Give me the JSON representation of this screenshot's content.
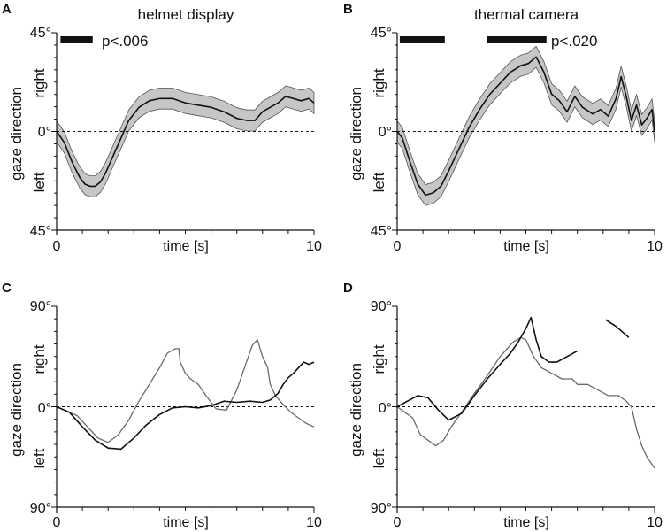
{
  "figure": {
    "panel_letters": [
      "A",
      "B",
      "C",
      "D"
    ],
    "titles": {
      "a": "helmet display",
      "b": "thermal camera"
    }
  },
  "colors": {
    "black": "#111111",
    "gray": "#6a6a6a",
    "band": "#c6c6c6"
  },
  "chart_data": [
    {
      "panel": "A",
      "type": "line",
      "title": "helmet display",
      "xlabel": "time [s]",
      "ylabel": "gaze direction",
      "ydir_labels": {
        "top": "right",
        "bottom": "left"
      },
      "xtick_labels": [
        "0",
        "10"
      ],
      "ytick_labels": {
        "top": "45°",
        "zero": "0°",
        "bottom": "45°"
      },
      "xlim": [
        0,
        10
      ],
      "ylim": [
        -45,
        45
      ],
      "zero_line": "dashed",
      "significance": {
        "label": "p<.006",
        "bars": [
          [
            0.15,
            1.4
          ]
        ]
      },
      "band_halfwidth": 4.8,
      "series": [
        {
          "name": "mean",
          "color": "black",
          "x": [
            0,
            0.3,
            0.6,
            0.9,
            1.1,
            1.3,
            1.5,
            1.7,
            1.9,
            2.2,
            2.5,
            2.8,
            3.2,
            3.6,
            4.0,
            4.5,
            5.0,
            5.5,
            6.0,
            6.5,
            7.0,
            7.4,
            7.7,
            8.0,
            8.3,
            8.6,
            8.9,
            9.2,
            9.5,
            9.8,
            10
          ],
          "y": [
            0,
            -5,
            -14,
            -21,
            -24,
            -25,
            -25,
            -23,
            -19,
            -11,
            -3,
            5,
            11,
            14,
            15,
            15,
            13,
            12,
            11,
            9,
            6,
            5,
            5,
            9,
            11,
            13,
            16,
            15,
            14,
            15,
            13
          ]
        }
      ]
    },
    {
      "panel": "B",
      "type": "line",
      "title": "thermal camera",
      "xlabel": "time [s]",
      "ylabel": "gaze direction",
      "ydir_labels": {
        "top": "right",
        "bottom": "left"
      },
      "xtick_labels": [
        "0",
        "10"
      ],
      "ytick_labels": {
        "top": "45°",
        "zero": "0°",
        "bottom": "45°"
      },
      "xlim": [
        0,
        10
      ],
      "ylim": [
        -45,
        45
      ],
      "zero_line": "dashed",
      "significance": {
        "label": "p<.020",
        "bars": [
          [
            0.1,
            1.85
          ],
          [
            3.5,
            5.8
          ]
        ]
      },
      "band_halfwidth": 4.8,
      "series": [
        {
          "name": "mean",
          "color": "black",
          "x": [
            0,
            0.2,
            0.5,
            0.8,
            1.1,
            1.4,
            1.7,
            2.0,
            2.4,
            2.8,
            3.2,
            3.6,
            4.0,
            4.4,
            4.8,
            5.1,
            5.4,
            5.7,
            6.0,
            6.3,
            6.6,
            6.9,
            7.2,
            7.6,
            7.9,
            8.2,
            8.5,
            8.7,
            8.9,
            9.1,
            9.3,
            9.5,
            9.7,
            9.9,
            10
          ],
          "y": [
            0,
            -3,
            -14,
            -24,
            -29,
            -28,
            -25,
            -18,
            -8,
            2,
            10,
            17,
            22,
            27,
            30,
            31,
            34,
            27,
            17,
            14,
            9,
            16,
            11,
            8,
            10,
            7,
            15,
            25,
            16,
            5,
            12,
            3,
            6,
            10,
            0
          ]
        }
      ]
    },
    {
      "panel": "C",
      "type": "line",
      "xlabel": "time [s]",
      "ylabel": "gaze direction",
      "ydir_labels": {
        "top": "right",
        "bottom": "left"
      },
      "xtick_labels": [
        "0",
        "10"
      ],
      "ytick_labels": {
        "top": "90°",
        "zero": "0°",
        "bottom": "90°"
      },
      "xlim": [
        0,
        10
      ],
      "ylim": [
        -90,
        90
      ],
      "zero_line": "dashed",
      "series": [
        {
          "name": "series-gray",
          "color": "gray",
          "x": [
            0,
            0.4,
            0.8,
            1.2,
            1.6,
            2.0,
            2.4,
            2.8,
            3.2,
            3.6,
            4.0,
            4.3,
            4.6,
            4.75,
            4.8,
            5.0,
            5.2,
            5.5,
            5.8,
            6.2,
            6.6,
            7.0,
            7.3,
            7.6,
            7.8,
            8.0,
            8.2,
            8.3,
            8.5,
            8.8,
            9.1,
            9.4,
            9.7,
            10
          ],
          "y": [
            0,
            -4,
            -8,
            -18,
            -28,
            -32,
            -25,
            -12,
            5,
            20,
            35,
            48,
            52,
            52,
            40,
            30,
            25,
            20,
            10,
            -2,
            -3,
            15,
            35,
            55,
            60,
            45,
            35,
            20,
            10,
            2,
            -5,
            -10,
            -15,
            -18
          ]
        },
        {
          "name": "series-black",
          "color": "black",
          "x": [
            0,
            0.5,
            1.0,
            1.5,
            2.0,
            2.5,
            3.0,
            3.5,
            4.0,
            4.5,
            5.0,
            5.5,
            6.0,
            6.5,
            7.0,
            7.5,
            8.0,
            8.3,
            8.6,
            8.8,
            9.0,
            9.2,
            9.4,
            9.6,
            9.8,
            10
          ],
          "y": [
            0,
            -5,
            -18,
            -30,
            -37,
            -38,
            -28,
            -16,
            -7,
            -1,
            0,
            -1,
            1,
            5,
            4,
            5,
            4,
            6,
            12,
            20,
            26,
            30,
            35,
            40,
            38,
            40
          ]
        }
      ]
    },
    {
      "panel": "D",
      "type": "line",
      "xlabel": "time [s]",
      "ylabel": "gaze direction",
      "ydir_labels": {
        "top": "right",
        "bottom": "left"
      },
      "xtick_labels": [
        "0",
        "10"
      ],
      "ytick_labels": {
        "top": "90°",
        "zero": "0°",
        "bottom": "90°"
      },
      "xlim": [
        0,
        10
      ],
      "ylim": [
        -90,
        90
      ],
      "zero_line": "dashed",
      "series": [
        {
          "name": "series-gray",
          "color": "gray",
          "x": [
            0,
            0.3,
            0.6,
            0.9,
            1.2,
            1.5,
            1.8,
            2.1,
            2.5,
            3.0,
            3.5,
            4.0,
            4.5,
            4.8,
            5.0,
            5.3,
            5.6,
            6.0,
            6.4,
            6.8,
            7.0,
            7.4,
            7.8,
            8.2,
            8.6,
            8.9,
            9.1,
            9.3,
            9.5,
            9.7,
            10
          ],
          "y": [
            0,
            -5,
            -10,
            -25,
            -30,
            -35,
            -30,
            -18,
            -5,
            12,
            28,
            45,
            58,
            62,
            60,
            45,
            35,
            30,
            25,
            25,
            20,
            20,
            15,
            10,
            10,
            5,
            0,
            -20,
            -35,
            -45,
            -55
          ]
        },
        {
          "name": "series-black",
          "color": "black",
          "x": [
            0,
            0.4,
            0.8,
            1.2,
            1.6,
            2.0,
            2.5,
            3.0,
            3.5,
            4.0,
            4.4,
            4.7,
            5.0,
            5.2,
            5.4,
            5.6,
            5.9,
            6.2,
            6.6,
            7.0
          ],
          "y": [
            0,
            5,
            10,
            8,
            -3,
            -12,
            -6,
            10,
            25,
            38,
            48,
            58,
            70,
            80,
            60,
            45,
            40,
            40,
            45,
            50
          ]
        },
        {
          "name": "series-black-2",
          "color": "black",
          "x": [
            8.1,
            8.3,
            8.5,
            8.7,
            9.0
          ],
          "y": [
            78,
            75,
            72,
            68,
            62
          ]
        }
      ]
    }
  ]
}
